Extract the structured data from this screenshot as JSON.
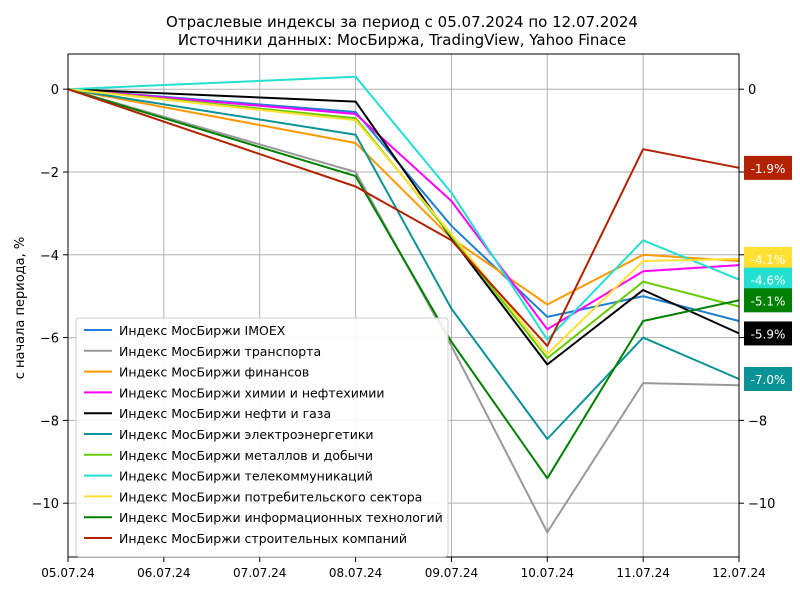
{
  "chart_data": {
    "type": "line",
    "title": "Отраслевые индексы за период с 05.07.2024 по 12.07.2024",
    "subtitle": "Источники данных: МосБиржа, TradingView, Yahoo Finace",
    "ylabel": "с начала периода, %",
    "xlabel": "",
    "categories": [
      "05.07.24",
      "06.07.24",
      "07.07.24",
      "08.07.24",
      "09.07.24",
      "10.07.24",
      "11.07.24",
      "12.07.24"
    ],
    "ylim": [
      -11.3,
      0.85
    ],
    "yticks": [
      0,
      -2,
      -4,
      -6,
      -8,
      -10
    ],
    "ytick_labels": [
      "0",
      "−2",
      "−4",
      "−6",
      "−8",
      "−10"
    ],
    "grid": true,
    "legend_position": "lower-left",
    "series": [
      {
        "name": "Индекс МосБиржи IMOEX",
        "color": "#1f7fd0",
        "values": [
          0,
          null,
          null,
          -0.55,
          -3.3,
          -5.5,
          -5.0,
          -5.6
        ]
      },
      {
        "name": "Индекс МосБиржи транспорта",
        "color": "#999999",
        "values": [
          0,
          null,
          null,
          -2.0,
          -6.2,
          -10.7,
          -7.1,
          -7.15
        ]
      },
      {
        "name": "Индекс МосБиржи финансов",
        "color": "#ff9900",
        "values": [
          0,
          null,
          null,
          -1.3,
          -3.6,
          -5.2,
          -4.0,
          -4.15
        ]
      },
      {
        "name": "Индекс МосБиржи химии и нефтехимии",
        "color": "#ff00ff",
        "values": [
          0,
          null,
          null,
          -0.6,
          -2.7,
          -5.8,
          -4.4,
          -4.25
        ]
      },
      {
        "name": "Индекс МосБиржи нефти и газа",
        "color": "#000000",
        "values": [
          0,
          null,
          null,
          -0.3,
          -3.6,
          -6.65,
          -4.85,
          -5.9
        ]
      },
      {
        "name": "Индекс МосБиржи электроэнергетики",
        "color": "#0a9396",
        "values": [
          0,
          null,
          null,
          -1.1,
          -5.3,
          -8.45,
          -6.0,
          -7.0
        ]
      },
      {
        "name": "Индекс МосБиржи металлов и добычи",
        "color": "#66cc00",
        "values": [
          0,
          null,
          null,
          -0.7,
          -3.55,
          -6.5,
          -4.65,
          -5.25
        ]
      },
      {
        "name": "Индекс МосБиржи телекоммуникаций",
        "color": "#22dfd0",
        "values": [
          0,
          null,
          null,
          0.3,
          -2.5,
          -6.05,
          -3.65,
          -4.6
        ]
      },
      {
        "name": "Индекс МосБиржи потребительского сектора",
        "color": "#ffe033",
        "values": [
          0,
          null,
          null,
          -0.75,
          -3.5,
          -6.4,
          -4.15,
          -4.1
        ]
      },
      {
        "name": "Индекс МосБиржи информационных технологий",
        "color": "#008000",
        "values": [
          0,
          null,
          null,
          -2.1,
          -6.1,
          -9.4,
          -5.6,
          -5.1
        ]
      },
      {
        "name": "Индекс МосБиржи строительных компаний",
        "color": "#b22200",
        "values": [
          0,
          null,
          null,
          -2.35,
          -3.65,
          -6.2,
          -1.45,
          -1.9
        ]
      }
    ],
    "right_labels": [
      {
        "text": "-1.9%",
        "value": -1.9,
        "bg": "#b22200",
        "fg": "#ffffff"
      },
      {
        "text": "-4.1%",
        "value": -4.1,
        "bg": "#ffe033",
        "fg": "#ffffff"
      },
      {
        "text": "-4.6%",
        "value": -4.6,
        "bg": "#22dfd0",
        "fg": "#ffffff"
      },
      {
        "text": "-5.1%",
        "value": -5.1,
        "bg": "#008000",
        "fg": "#ffffff"
      },
      {
        "text": "-5.9%",
        "value": -5.9,
        "bg": "#000000",
        "fg": "#ffffff"
      },
      {
        "text": "-7.0%",
        "value": -7.0,
        "bg": "#0a9396",
        "fg": "#ffffff"
      }
    ]
  }
}
